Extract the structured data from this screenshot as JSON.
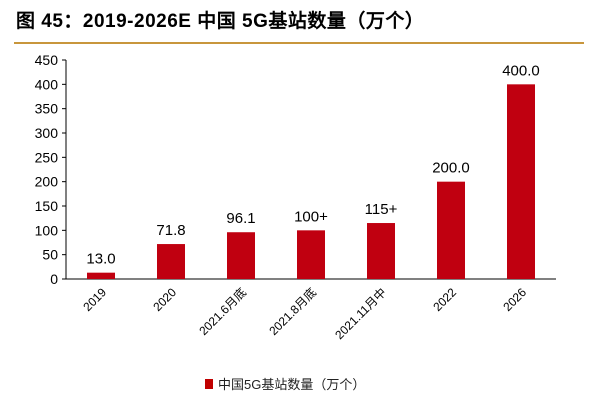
{
  "title": "图 45：2019-2026E 中国 5G基站数量（万个）",
  "colors": {
    "bar": "#c00010",
    "rule": "#c8963c"
  },
  "chart_data": {
    "type": "bar",
    "title": "图 45：2019-2026E 中国 5G基站数量（万个）",
    "categories": [
      "2019",
      "2020",
      "2021.6月底",
      "2021.8月底",
      "2021.11月中",
      "2022",
      "2026"
    ],
    "series": [
      {
        "name": "中国5G基站数量（万个）",
        "values": [
          13.0,
          71.8,
          96.1,
          100,
          115,
          200,
          400
        ],
        "labels": [
          "13.0",
          "71.8",
          "96.1",
          "100+",
          "115+",
          "200.0",
          "400.0"
        ]
      }
    ],
    "yticks": [
      "0",
      "50",
      "100",
      "150",
      "200",
      "250",
      "300",
      "350",
      "400",
      "450"
    ],
    "ylim": [
      0,
      450
    ],
    "grid": false,
    "legend": "bottom"
  }
}
